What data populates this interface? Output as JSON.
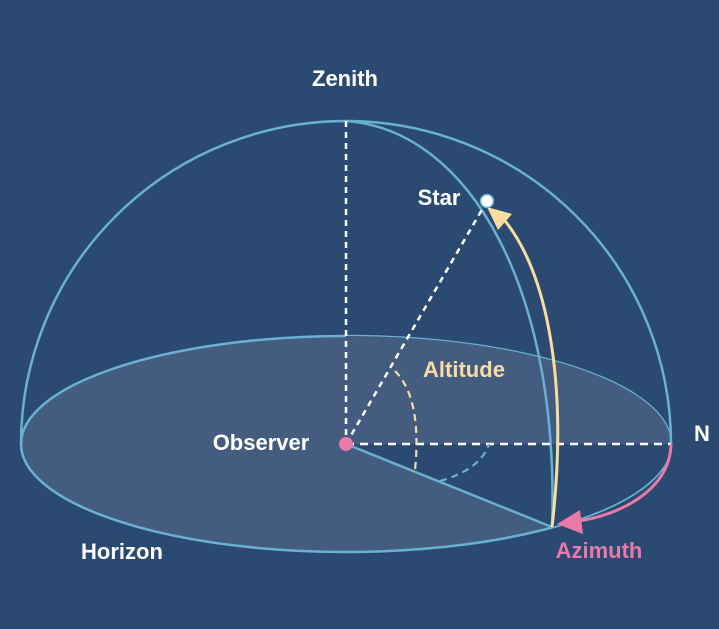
{
  "labels": {
    "zenith": "Zenith",
    "star": "Star",
    "altitude": "Altitude",
    "observer": "Observer",
    "north": "N",
    "horizon": "Horizon",
    "azimuth": "Azimuth"
  },
  "colors": {
    "background": "#2b4a72",
    "dome_line": "#6ab0cf",
    "horizon_fill": "#435c7f",
    "label_text": "#ffffff",
    "altitude": "#f9dca0",
    "azimuth": "#e879a8",
    "observer_dot": "#e879a8",
    "star_dot": "#ffffff"
  }
}
